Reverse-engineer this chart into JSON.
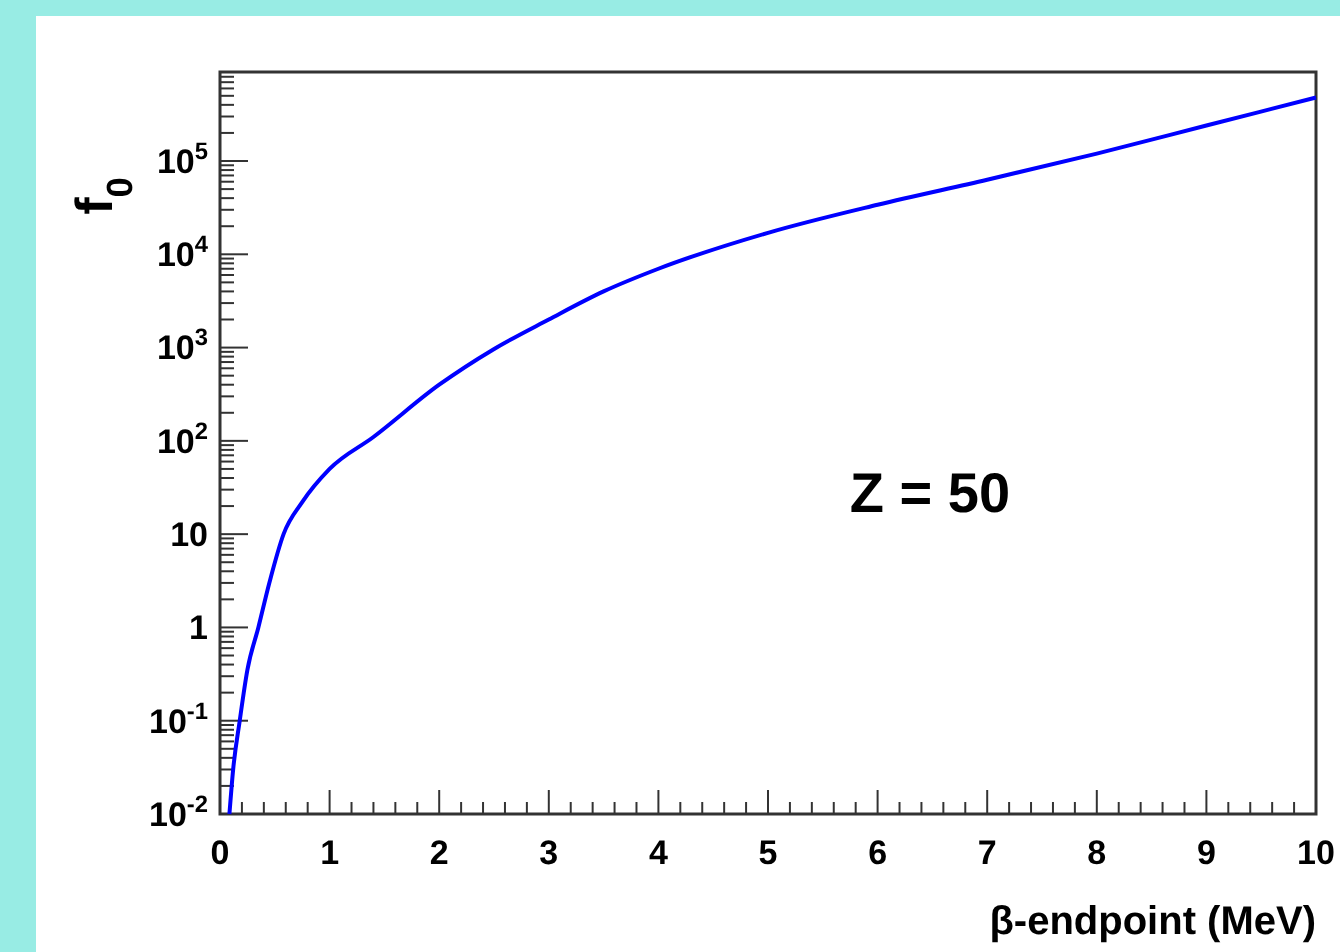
{
  "chart_data": {
    "type": "line",
    "xlabel": "β-endpoint (MeV)",
    "ylabel": "f$_{0}$",
    "annotations": [
      "Z = 50"
    ],
    "log": "y",
    "marker": "none",
    "line_style": "solid",
    "grid": false,
    "x": [
      0.086,
      0.12,
      0.18,
      0.25,
      0.35,
      0.45,
      0.58,
      0.75,
      1,
      1.4,
      2,
      2.49,
      3,
      3.5,
      4,
      5,
      6,
      7,
      8,
      9,
      10
    ],
    "series": [
      {
        "color": "#0000ff",
        "values": [
          0.01,
          0.03,
          0.1,
          0.35,
          1,
          3,
          10,
          22,
          50,
          110,
          400,
          950,
          2000,
          4000,
          7000,
          17000,
          34000,
          63000,
          120000,
          240000,
          480000
        ]
      }
    ],
    "xlim": [
      0,
      10
    ],
    "xticks": [
      0,
      1,
      2,
      3,
      4,
      5,
      6,
      7,
      8,
      9,
      10
    ],
    "ylim": [
      0.01,
      900000
    ],
    "yticks": [
      {
        "value": 0.01,
        "label": "10$^{-2}$"
      },
      {
        "value": 0.1,
        "label": "10$^{-1}$"
      },
      1,
      10,
      {
        "value": 100,
        "label": "10$^{2}$"
      },
      {
        "value": 1000,
        "label": "10$^{3}$"
      },
      {
        "value": 10000,
        "label": "10$^{4}$"
      },
      {
        "value": 100000,
        "label": "10$^{5}$"
      }
    ]
  }
}
